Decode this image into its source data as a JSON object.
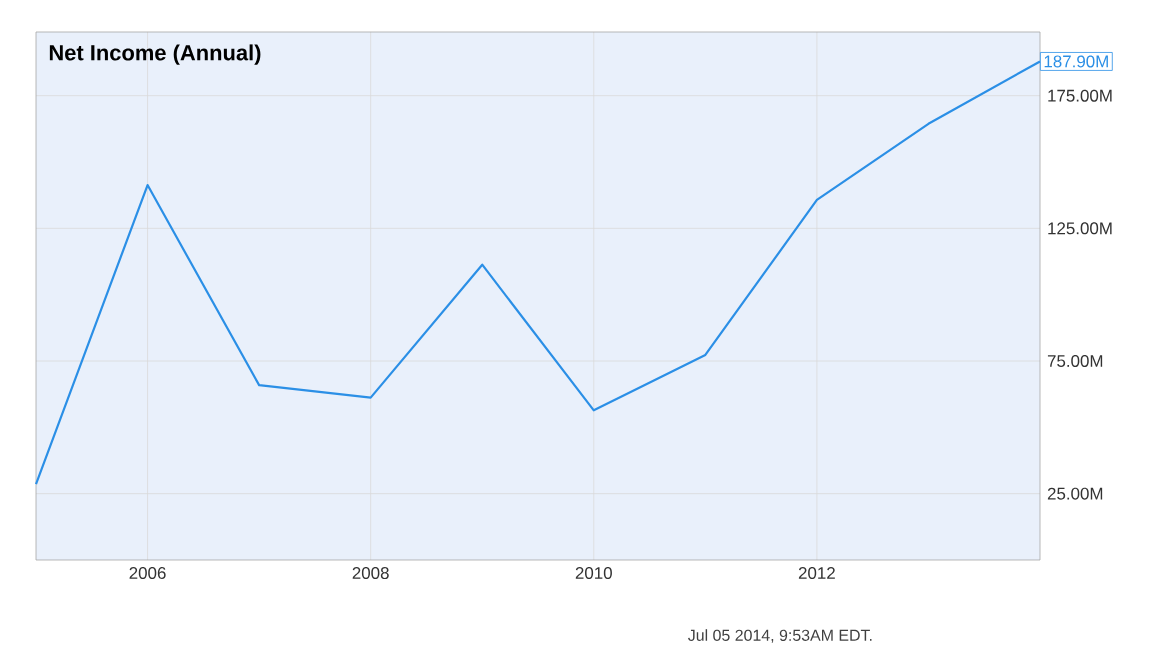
{
  "chart_data": {
    "type": "line",
    "title": "Net Income (Annual)",
    "x": [
      2005,
      2006,
      2007,
      2008,
      2009,
      2010,
      2011,
      2012,
      2013,
      2014
    ],
    "series": [
      {
        "color": "#2b8fe6",
        "values": [
          28.6,
          141.3,
          65.9,
          61.2,
          111.3,
          56.4,
          77.3,
          135.7,
          164.4,
          187.9
        ],
        "value_labels": [
          null,
          null,
          null,
          null,
          null,
          null,
          null,
          null,
          null,
          "187.90M"
        ]
      }
    ],
    "xlim": [
      2005,
      2014
    ],
    "xticks": [
      2006,
      2008,
      2010,
      2012
    ],
    "ylim": [
      0,
      199
    ],
    "yticks": [
      {
        "value": 25,
        "label": "25.00M"
      },
      {
        "value": 75,
        "label": "75.00M"
      },
      {
        "value": 125,
        "label": "125.00M"
      },
      {
        "value": 175,
        "label": "175.00M"
      }
    ],
    "grid": true,
    "annotations": [
      "Jul 05 2014, 9:53AM EDT."
    ]
  }
}
